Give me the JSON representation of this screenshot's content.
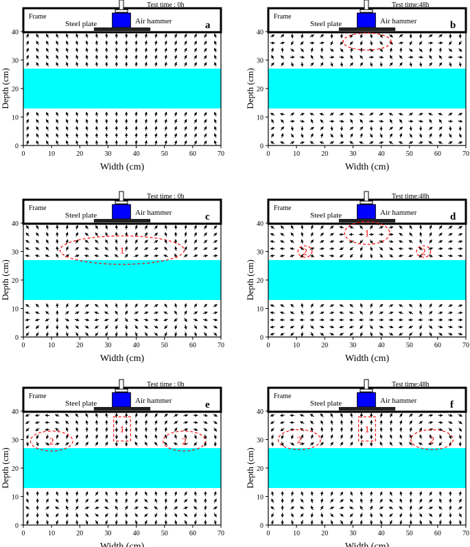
{
  "colors": {
    "water_layer": "#00FFFF",
    "air_hammer": "#0000FF",
    "arrows": "#000000",
    "annotation": "#FF0000",
    "frame": "#000000"
  },
  "labels": {
    "frame": "Frame",
    "steel_plate": "Steel plate",
    "air_hammer": "Air hammer",
    "x_axis": "Width (cm)",
    "y_axis": "Depth (cm)",
    "x_ticks": [
      "0",
      "10",
      "20",
      "30",
      "40",
      "50",
      "60",
      "70"
    ],
    "y_ticks": [
      "0",
      "10",
      "20",
      "30",
      "40"
    ]
  },
  "panels": [
    {
      "id": "a",
      "test_time": "Test time : 0h",
      "field": "up",
      "annotations": []
    },
    {
      "id": "b",
      "test_time": "Test time:48h",
      "field": "mixed",
      "annotations": [
        {
          "type": "ellipse",
          "cx": 35,
          "cy": 36.5,
          "rx": 8.5,
          "ry": 3,
          "label": ""
        }
      ]
    },
    {
      "id": "c",
      "test_time": "Test time : 0h",
      "field": "heave",
      "annotations": [
        {
          "type": "ellipse",
          "cx": 35,
          "cy": 30.5,
          "rx": 22,
          "ry": 5,
          "label": "1"
        }
      ]
    },
    {
      "id": "d",
      "test_time": "Test time:48h",
      "field": "cells",
      "annotations": [
        {
          "type": "ellipse",
          "cx": 35,
          "cy": 36.5,
          "rx": 8,
          "ry": 4,
          "label": "1"
        },
        {
          "type": "ellipse",
          "cx": 13,
          "cy": 30,
          "rx": 2.5,
          "ry": 2,
          "label": "2"
        },
        {
          "type": "ellipse",
          "cx": 55,
          "cy": 30,
          "rx": 2.5,
          "ry": 2,
          "label": "2"
        }
      ]
    },
    {
      "id": "e",
      "test_time": "Test time : 0h",
      "field": "vortex",
      "annotations": [
        {
          "type": "rect",
          "x0": 32,
          "x1": 38,
          "y0": 29.5,
          "y1": 38,
          "label": "1"
        },
        {
          "type": "ellipse",
          "cx": 10,
          "cy": 29.5,
          "rx": 7.5,
          "ry": 3.5,
          "label": "2"
        },
        {
          "type": "ellipse",
          "cx": 57,
          "cy": 29.5,
          "rx": 7.5,
          "ry": 3.5,
          "label": "2"
        }
      ]
    },
    {
      "id": "f",
      "test_time": "Test time:48h",
      "field": "vortex",
      "annotations": [
        {
          "type": "rect",
          "x0": 32,
          "x1": 38,
          "y0": 29.5,
          "y1": 38,
          "label": "1"
        },
        {
          "type": "ellipse",
          "cx": 11,
          "cy": 30,
          "rx": 7.5,
          "ry": 3.5,
          "label": "2"
        },
        {
          "type": "ellipse",
          "cx": 58,
          "cy": 30,
          "rx": 7.5,
          "ry": 3.5,
          "label": "2"
        }
      ]
    }
  ],
  "geometry": {
    "x_range": [
      0,
      70
    ],
    "y_range": [
      0,
      40
    ],
    "water_band": [
      13,
      27
    ],
    "steel_plate_span": [
      25,
      45
    ],
    "air_hammer_span": [
      31.5,
      38
    ]
  }
}
